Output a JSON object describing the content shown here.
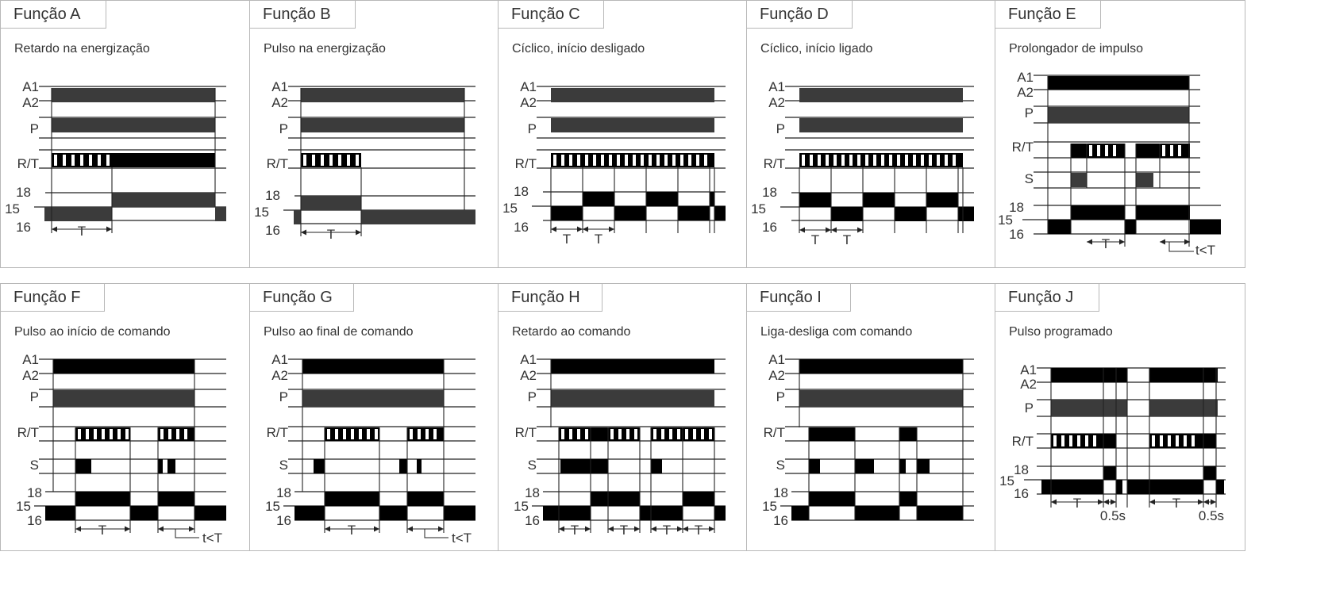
{
  "functions": [
    {
      "tab": "Função A",
      "subtitle": "Retardo na energização"
    },
    {
      "tab": "Função B",
      "subtitle": "Pulso na energização"
    },
    {
      "tab": "Função C",
      "subtitle": "Cíclico, início desligado"
    },
    {
      "tab": "Função D",
      "subtitle": "Cíclico, início ligado"
    },
    {
      "tab": "Função E",
      "subtitle": "Prolongador de impulso"
    },
    {
      "tab": "Função F",
      "subtitle": "Pulso ao início de comando"
    },
    {
      "tab": "Função G",
      "subtitle": "Pulso ao final de comando"
    },
    {
      "tab": "Função H",
      "subtitle": "Retardo ao comando"
    },
    {
      "tab": "Função I",
      "subtitle": "Liga-desliga com comando"
    },
    {
      "tab": "Função J",
      "subtitle": "Pulso programado"
    }
  ],
  "signal_labels": {
    "a1": "A1",
    "a2": "A2",
    "p": "P",
    "rt": "R/T",
    "s": "S",
    "c18": "18",
    "c15": "15",
    "c16": "16"
  },
  "time_labels": {
    "t": "T",
    "lt": "t<T",
    "half": "0.5s"
  },
  "colors": {
    "bar": "#3b3b3b",
    "black": "#000000",
    "line": "#222222",
    "border": "#b8b8b8"
  }
}
